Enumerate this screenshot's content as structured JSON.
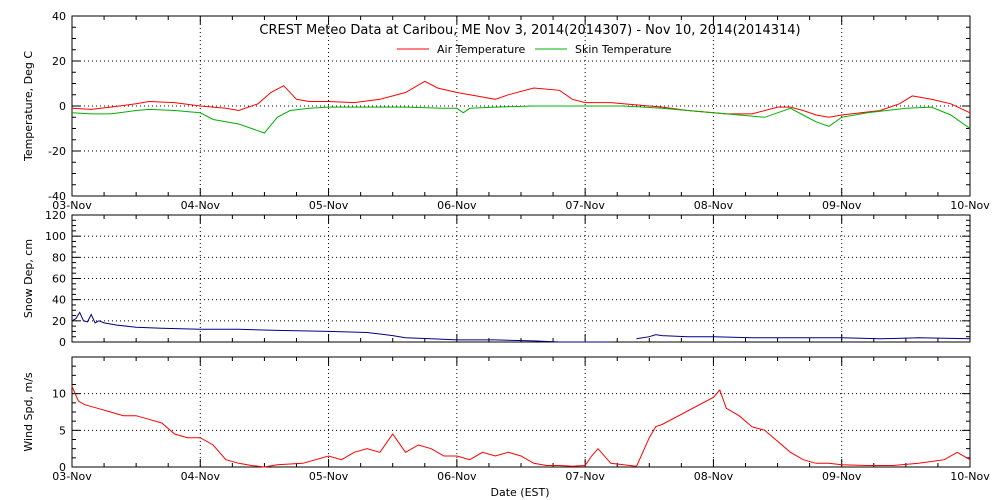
{
  "title": "CREST Meteo Data at Caribou, ME   Nov  3, 2014(2014307) - Nov 10, 2014(2014314)",
  "xlabel": "Date (EST)",
  "colors": {
    "air": "#ff0000",
    "skin": "#00b000",
    "snow": "#000080",
    "wind": "#ff0000"
  },
  "chart_data": [
    {
      "type": "line",
      "name_key": "temperature",
      "ylabel": "Temperature, Deg C",
      "ylim": [
        -40,
        40
      ],
      "yticks": [
        "-40",
        "-20",
        "0",
        "20",
        "40"
      ],
      "xlim": [
        0,
        7
      ],
      "xticks": [
        "03-Nov",
        "04-Nov",
        "05-Nov",
        "06-Nov",
        "07-Nov",
        "08-Nov",
        "09-Nov",
        "10-Nov"
      ],
      "grid": true,
      "legend": "top-center",
      "series": [
        {
          "name": "Air Temperature",
          "x": [
            0,
            0.15,
            0.3,
            0.5,
            0.6,
            0.8,
            1.0,
            1.2,
            1.3,
            1.45,
            1.55,
            1.65,
            1.75,
            1.85,
            2.0,
            2.2,
            2.4,
            2.6,
            2.75,
            2.85,
            3.0,
            3.1,
            3.2,
            3.3,
            3.4,
            3.6,
            3.8,
            3.9,
            4.0,
            4.2,
            4.4,
            4.6,
            4.8,
            5.0,
            5.1,
            5.3,
            5.5,
            5.6,
            5.7,
            5.8,
            5.9,
            6.0,
            6.15,
            6.3,
            6.45,
            6.55,
            6.7,
            6.85,
            7.0
          ],
          "y": [
            -1,
            -1.5,
            -0.5,
            1,
            2,
            1.5,
            0,
            -1,
            -2,
            1,
            6,
            9,
            3,
            2,
            2,
            1.5,
            3,
            6,
            11,
            8,
            6,
            5,
            4,
            3,
            5,
            8,
            7,
            3,
            1.5,
            1.5,
            0.5,
            -0.5,
            -2,
            -3,
            -3.5,
            -3.5,
            -0.5,
            -0.5,
            -2,
            -4,
            -5,
            -4,
            -3,
            -2,
            1,
            4.5,
            3,
            1,
            -3
          ]
        },
        {
          "name": "Skin Temperature",
          "x": [
            0,
            0.15,
            0.3,
            0.5,
            0.6,
            0.8,
            1.0,
            1.1,
            1.2,
            1.3,
            1.4,
            1.5,
            1.6,
            1.7,
            1.85,
            2.0,
            2.3,
            2.6,
            2.9,
            3.0,
            3.05,
            3.1,
            3.3,
            3.6,
            3.9,
            4.0,
            4.3,
            4.6,
            4.8,
            5.0,
            5.2,
            5.4,
            5.5,
            5.6,
            5.7,
            5.8,
            5.9,
            6.0,
            6.2,
            6.5,
            6.7,
            6.85,
            7.0
          ],
          "y": [
            -3,
            -3.5,
            -3.5,
            -2,
            -1.5,
            -2,
            -3,
            -6,
            -7,
            -8,
            -10,
            -12,
            -5,
            -2,
            -1,
            -0.5,
            -0.5,
            -0.5,
            -1,
            -1,
            -3,
            -1,
            -0.5,
            0,
            0,
            0,
            0,
            -1,
            -2,
            -3,
            -4,
            -5,
            -3,
            -1,
            -4,
            -7,
            -9,
            -5,
            -3,
            -1,
            -0.5,
            -4,
            -10
          ]
        }
      ]
    },
    {
      "type": "line",
      "name_key": "snow",
      "ylabel": "Snow Dep, cm",
      "ylim": [
        0,
        120
      ],
      "yticks": [
        "0",
        "20",
        "40",
        "60",
        "80",
        "100",
        "120"
      ],
      "xlim": [
        0,
        7
      ],
      "grid": true,
      "series": [
        {
          "name": "",
          "segments": [
            {
              "x": [
                0,
                0.03,
                0.06,
                0.09,
                0.12,
                0.15,
                0.18,
                0.21,
                0.25,
                0.35,
                0.5,
                0.7,
                1.0,
                1.3,
                1.6,
                2.0,
                2.3,
                2.5,
                2.6,
                2.8,
                3.0,
                3.3,
                3.6,
                3.8,
                4.0,
                4.2
              ],
              "y": [
                20,
                22,
                28,
                20,
                19,
                26,
                18,
                20,
                18,
                16,
                14,
                13,
                12,
                12,
                11,
                10,
                9,
                6,
                4,
                3,
                2,
                2,
                1,
                0,
                0,
                0
              ]
            },
            {
              "x": [
                4.4,
                4.5,
                4.55,
                4.6,
                4.8,
                5.0,
                5.3,
                5.6,
                6.0,
                6.3,
                6.6,
                7.0
              ],
              "y": [
                3,
                5,
                7,
                6,
                5,
                5,
                4,
                4,
                4,
                3,
                4,
                3
              ]
            }
          ]
        }
      ]
    },
    {
      "type": "line",
      "name_key": "wind",
      "ylabel": "Wind Spd, m/s",
      "ylim": [
        0,
        15
      ],
      "yticks": [
        "0",
        "5",
        "10"
      ],
      "xlim": [
        0,
        7
      ],
      "xticks": [
        "03-Nov",
        "04-Nov",
        "05-Nov",
        "06-Nov",
        "07-Nov",
        "08-Nov",
        "09-Nov",
        "10-Nov"
      ],
      "grid": true,
      "series": [
        {
          "name": "",
          "x": [
            0,
            0.05,
            0.1,
            0.2,
            0.3,
            0.4,
            0.5,
            0.6,
            0.7,
            0.8,
            0.9,
            1.0,
            1.1,
            1.2,
            1.3,
            1.4,
            1.5,
            1.6,
            1.8,
            2.0,
            2.1,
            2.2,
            2.3,
            2.4,
            2.5,
            2.6,
            2.7,
            2.8,
            2.9,
            3.0,
            3.1,
            3.2,
            3.3,
            3.4,
            3.5,
            3.6,
            3.7,
            3.8,
            3.9,
            4.0,
            4.05,
            4.1,
            4.2,
            4.3,
            4.4,
            4.5,
            4.55,
            4.6,
            5.0,
            5.05,
            5.1,
            5.2,
            5.3,
            5.4,
            5.5,
            5.6,
            5.7,
            5.8,
            5.9,
            6.0,
            6.2,
            6.4,
            6.6,
            6.8,
            6.9,
            7.0
          ],
          "y": [
            11,
            9,
            8.5,
            8,
            7.5,
            7,
            7,
            6.5,
            6,
            4.5,
            4,
            4,
            3,
            1,
            0.5,
            0.2,
            0,
            0.3,
            0.5,
            1.5,
            1,
            2,
            2.5,
            2,
            4.5,
            2,
            3,
            2.5,
            1.5,
            1.5,
            1,
            2,
            1.5,
            2,
            1.5,
            0.5,
            0.2,
            0.2,
            0.1,
            0.2,
            1.5,
            2.5,
            0.5,
            0.3,
            0.1,
            4,
            5.5,
            5.8,
            9.5,
            10.5,
            8,
            7,
            5.5,
            5,
            3.5,
            2,
            1,
            0.5,
            0.5,
            0.3,
            0.2,
            0.2,
            0.5,
            1,
            2,
            1
          ]
        }
      ]
    }
  ]
}
